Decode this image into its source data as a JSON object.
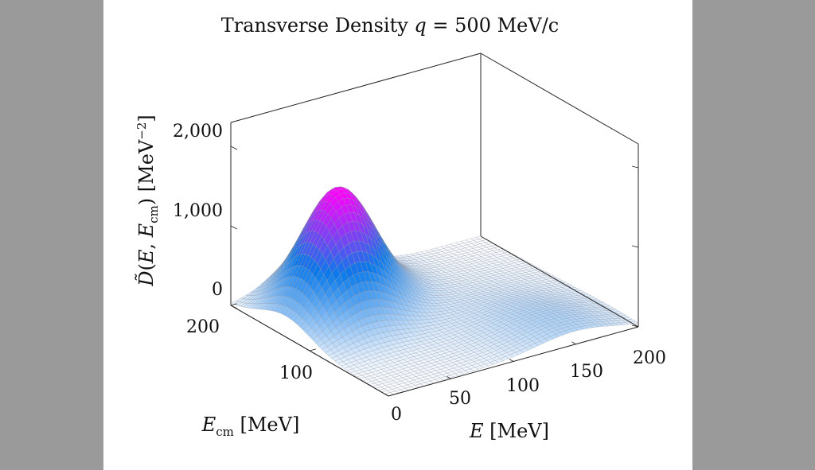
{
  "chart_data": {
    "type": "surface",
    "title": "Transverse Density q = 500 MeV/c",
    "xlabel": "E [MeV]",
    "ylabel": "E_cm [MeV]",
    "zlabel": "D̃(E, E_cm) [MeV−2]",
    "xlim": [
      0,
      200
    ],
    "ylim": [
      0,
      200
    ],
    "zlim": [
      0,
      2300
    ],
    "x_ticks": [
      "0",
      "50",
      "100",
      "150",
      "200"
    ],
    "y_ticks": [
      "100",
      "200"
    ],
    "z_ticks": [
      "0",
      "1,000",
      "2,000"
    ],
    "peak": {
      "E": 55,
      "E_cm": 150,
      "value": 1500
    },
    "colormap": [
      "#ffffff",
      "#0a7aea",
      "#ff00ff"
    ]
  }
}
